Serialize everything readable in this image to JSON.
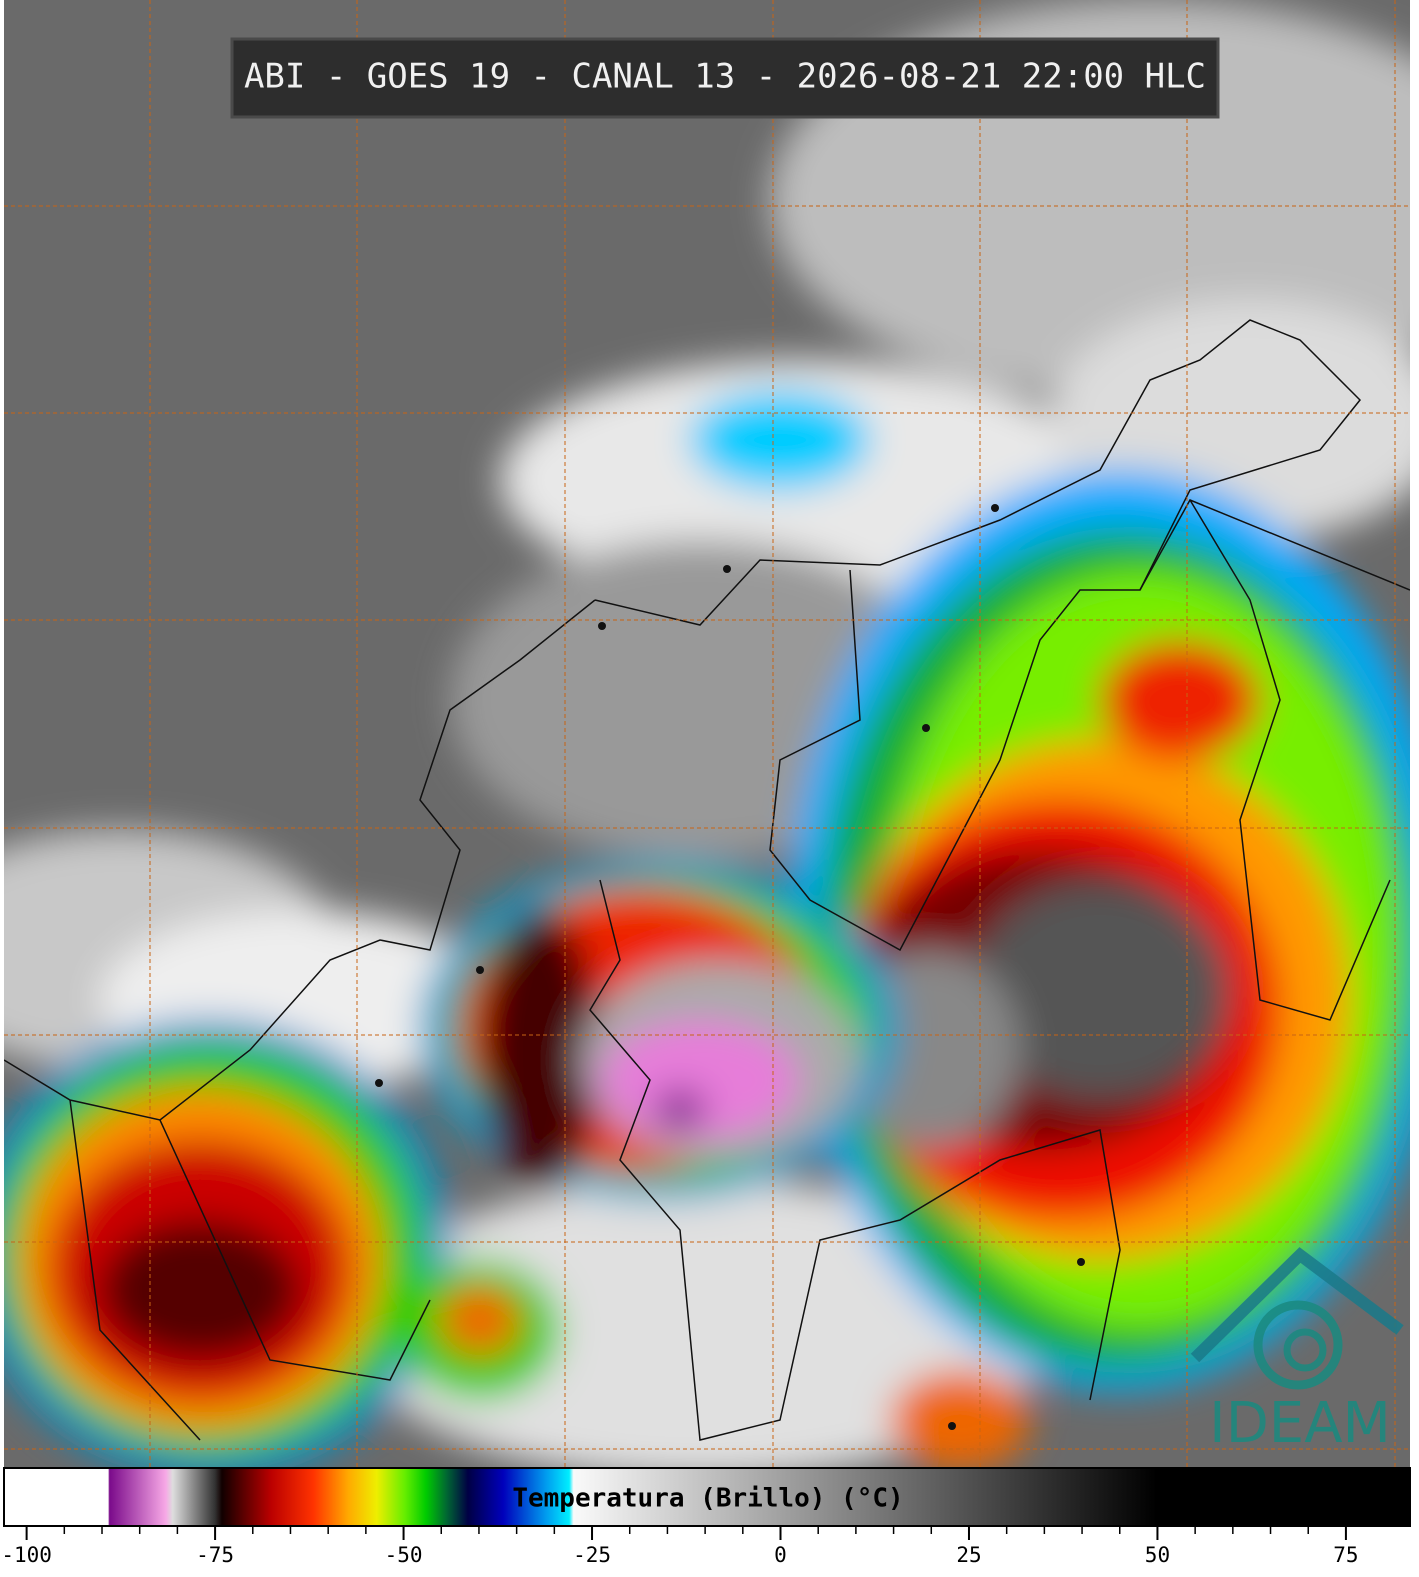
{
  "header": {
    "title": "ABI - GOES 19 - CANAL 13 - 2026-08-21 22:00 HLC"
  },
  "colorbar": {
    "label": "Temperatura (Brillo) (°C)",
    "xlim": [
      -103,
      83.5
    ],
    "xticks": [
      -100,
      -75,
      -50,
      -25,
      0,
      25,
      50,
      75
    ]
  },
  "logo": {
    "text": "IDEAM"
  }
}
